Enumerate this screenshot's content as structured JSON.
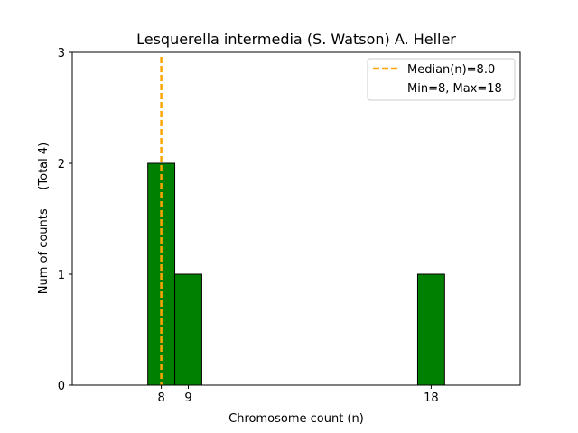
{
  "chart_data": {
    "type": "bar",
    "title": "Lesquerella intermedia (S. Watson) A. Heller",
    "xlabel": "Chromosome count (n)",
    "ylabel": "Num of counts     (Total 4)",
    "xlim": [
      4.7,
      21.3
    ],
    "ylim": [
      0,
      3
    ],
    "x_ticks": [
      "8",
      "9",
      "18"
    ],
    "y_ticks": [
      "0",
      "1",
      "2",
      "3"
    ],
    "bars": [
      {
        "x": 8,
        "value": 2
      },
      {
        "x": 9,
        "value": 1
      },
      {
        "x": 18,
        "value": 1
      }
    ],
    "bar_color": "#008000",
    "bar_edge_color": "#000000",
    "median_line": {
      "x": 8.0,
      "color": "#FFA500",
      "style": "dashed"
    },
    "legend": {
      "placement": "top-right",
      "entries": [
        "Median(n)=8.0",
        "Min=8, Max=18"
      ]
    },
    "grid": false
  }
}
